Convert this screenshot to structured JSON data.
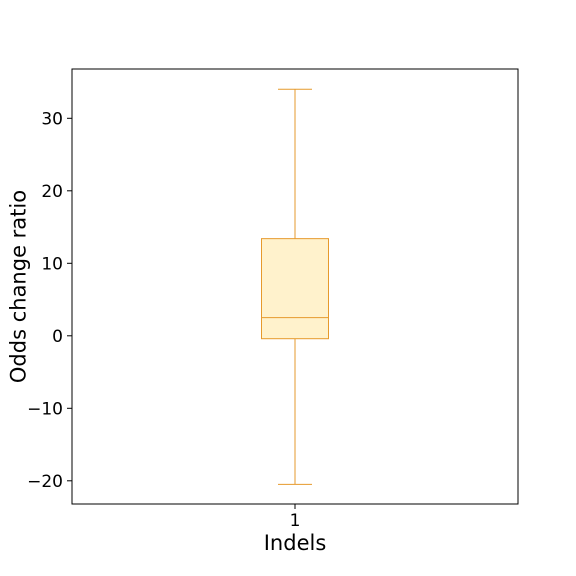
{
  "chart_data": {
    "type": "box",
    "title": "",
    "xlabel": "Indels",
    "ylabel": "Odds change ratio",
    "categories": [
      "1"
    ],
    "boxes": [
      {
        "category": "1",
        "whisker_low": -20.5,
        "q1": -0.4,
        "median": 2.5,
        "q3": 13.4,
        "whisker_high": 34.0
      }
    ],
    "yticks": [
      -20,
      -10,
      0,
      10,
      20,
      30
    ],
    "ytick_labels": [
      "−20",
      "−10",
      "0",
      "10",
      "20",
      "30"
    ],
    "ylim": [
      -23.2,
      36.8
    ],
    "grid": false,
    "colors": {
      "box_fill": "#fff2cc",
      "box_edge": "#e69a2c",
      "axis": "#000000"
    }
  }
}
